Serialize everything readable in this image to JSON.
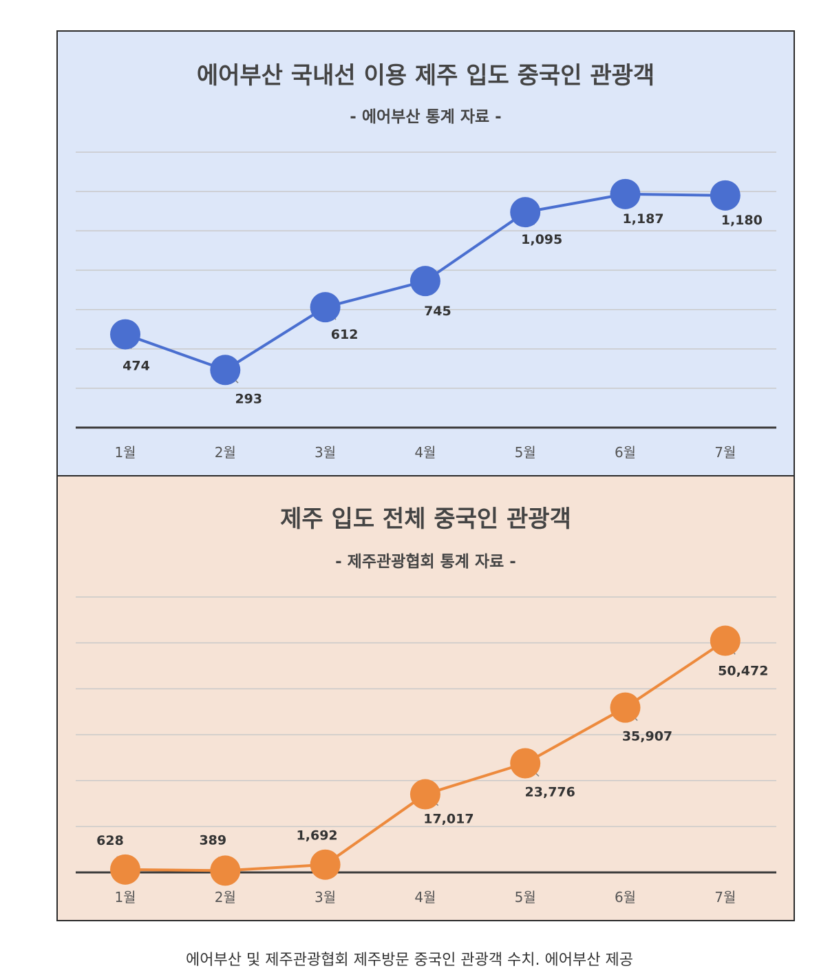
{
  "chart_data": [
    {
      "type": "line",
      "title": "에어부산 국내선 이용 제주 입도 중국인 관광객",
      "subtitle": "- 에어부산 통계 자료 -",
      "categories": [
        "1월",
        "2월",
        "3월",
        "4월",
        "5월",
        "6월",
        "7월"
      ],
      "values": [
        474,
        293,
        612,
        745,
        1095,
        1187,
        1180
      ],
      "labels": [
        "474",
        "293",
        "612",
        "745",
        "1,095",
        "1,187",
        "1,180"
      ],
      "ylim": [
        0,
        1400
      ],
      "grid": true,
      "color": "#4a6fd0"
    },
    {
      "type": "line",
      "title": "제주 입도 전체 중국인 관광객",
      "subtitle": "- 제주관광협회 통계 자료 -",
      "categories": [
        "1월",
        "2월",
        "3월",
        "4월",
        "5월",
        "6월",
        "7월"
      ],
      "values": [
        628,
        389,
        1692,
        17017,
        23776,
        35907,
        50472
      ],
      "labels": [
        "628",
        "389",
        "1,692",
        "17,017",
        "23,776",
        "35,907",
        "50,472"
      ],
      "ylim": [
        0,
        60000
      ],
      "grid": true,
      "color": "#ed8a3d"
    }
  ],
  "caption": "에어부산 및 제주관광협회 제주방문 중국인 관광객 수치. 에어부산 제공"
}
